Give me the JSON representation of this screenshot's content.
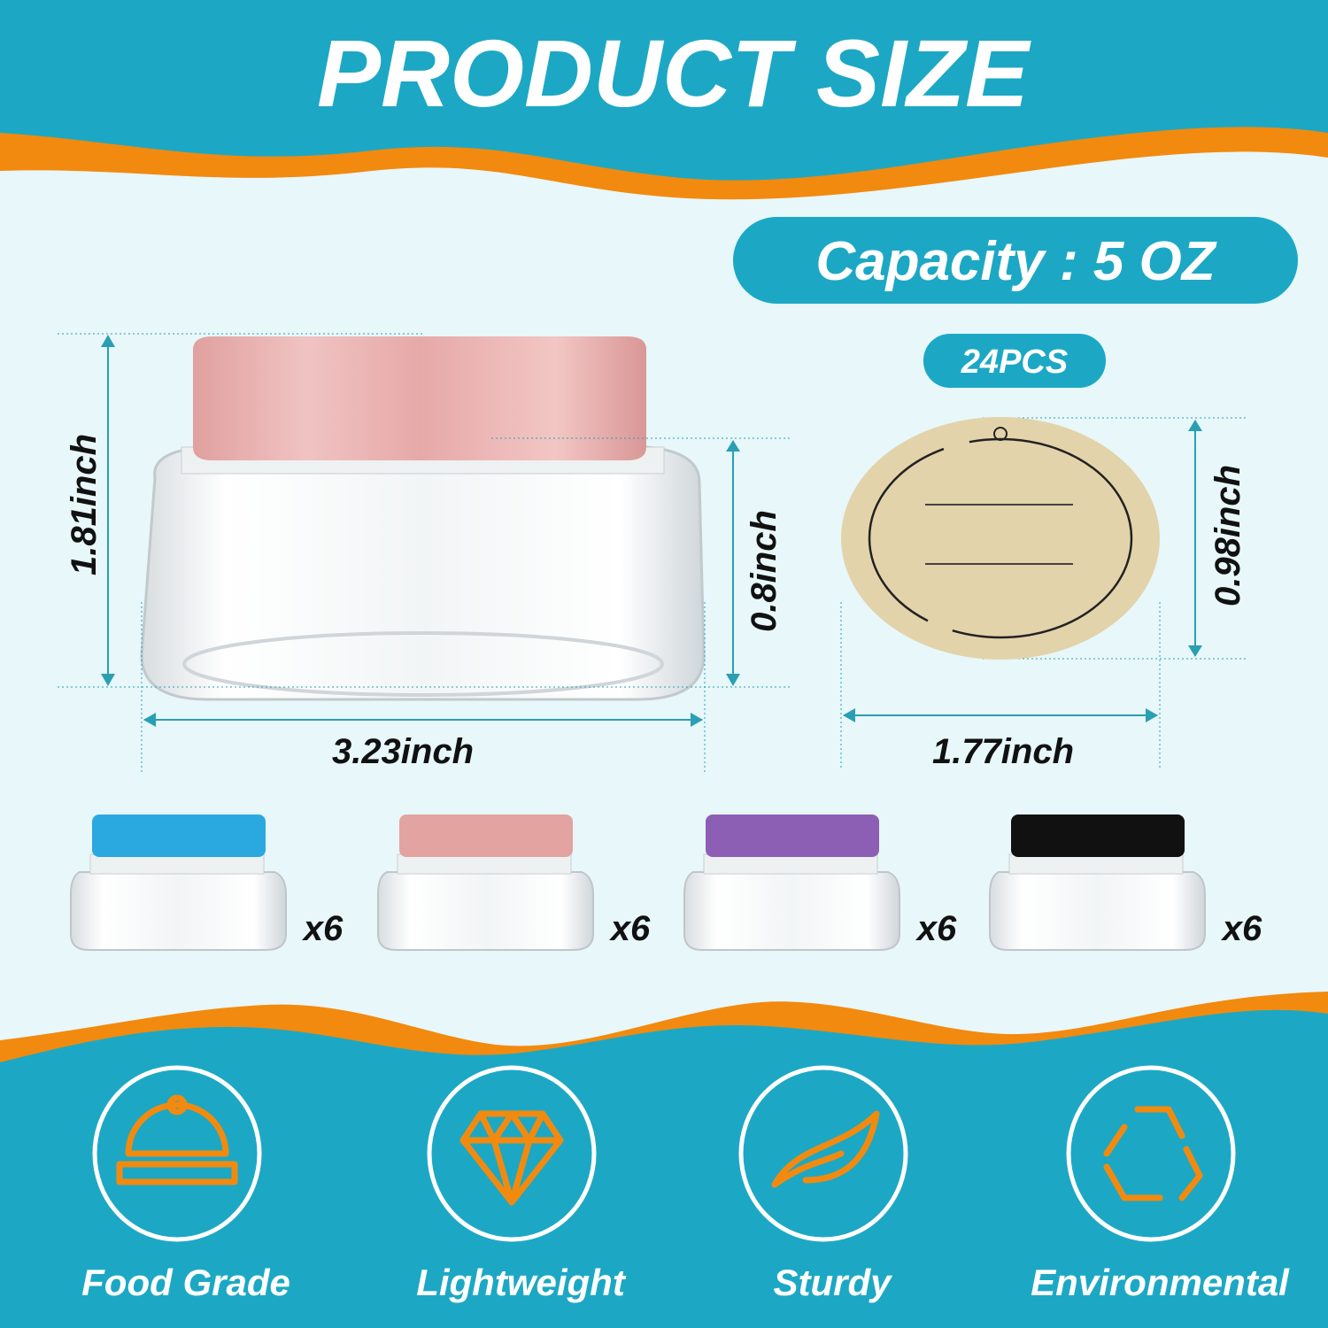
{
  "header": {
    "title": "PRODUCT SIZE"
  },
  "capacity": {
    "label": "Capacity : 5 OZ"
  },
  "quantity": {
    "label": "24PCS"
  },
  "dimensions": {
    "jar_height": "1.81inch",
    "jar_body_height": "0.8inch",
    "jar_width": "3.23inch",
    "label_height": "0.98inch",
    "label_width": "1.77inch"
  },
  "variants": [
    {
      "lid_color": "#2aa9e0",
      "count": "x6"
    },
    {
      "lid_color": "#e3a3a0",
      "count": "x6"
    },
    {
      "lid_color": "#8c5fb5",
      "count": "x6"
    },
    {
      "lid_color": "#111111",
      "count": "x6"
    }
  ],
  "features": [
    {
      "icon": "food-cloche-icon",
      "label": "Food Grade"
    },
    {
      "icon": "diamond-icon",
      "label": "Lightweight"
    },
    {
      "icon": "leaf-icon",
      "label": "Sturdy"
    },
    {
      "icon": "recycle-icon",
      "label": "Environmental"
    }
  ],
  "colors": {
    "teal": "#1ca8c4",
    "orange": "#f28a0f",
    "background": "#e7f7fa",
    "pink_lid": "#e8a9a8",
    "label_paper": "#e3d3aa"
  }
}
